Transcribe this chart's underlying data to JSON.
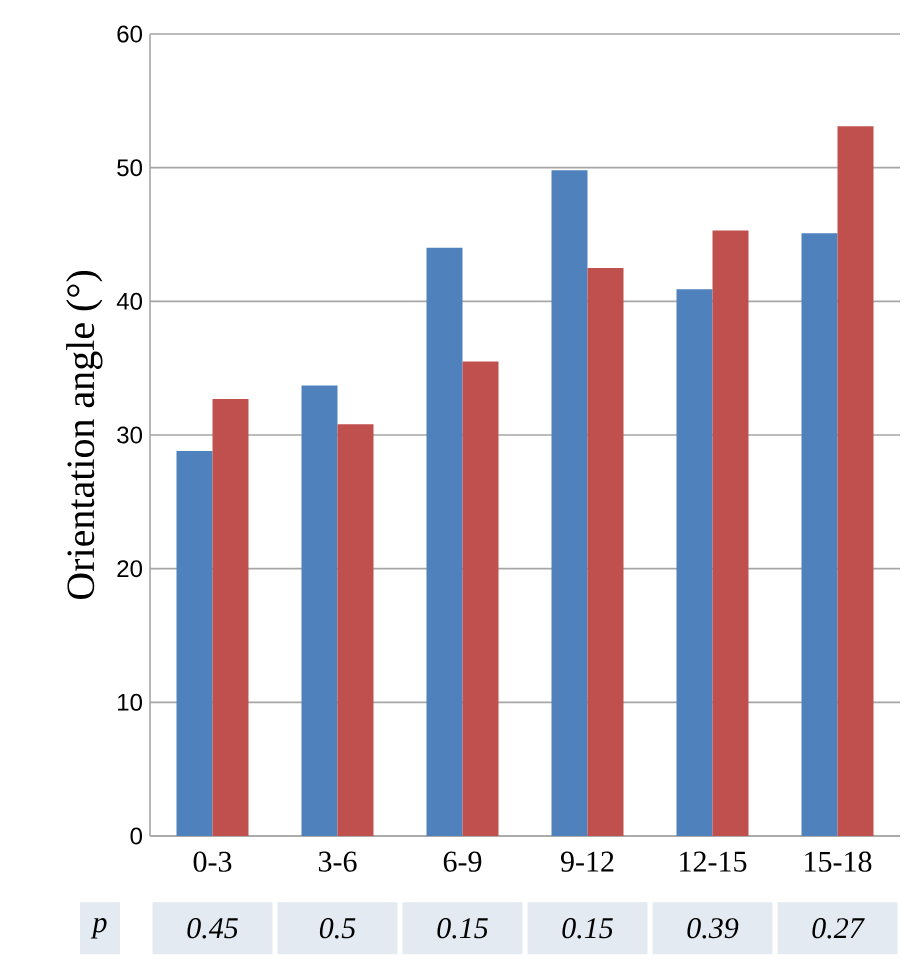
{
  "chart_data": {
    "type": "bar",
    "ylabel": "Orientation angle (°)",
    "categories": [
      "0-3",
      "3-6",
      "6-9",
      "9-12",
      "12-15",
      "15-18"
    ],
    "series": [
      {
        "color": "#4f81bd",
        "values": [
          28.8,
          33.7,
          44.0,
          49.8,
          40.9,
          45.1
        ]
      },
      {
        "color": "#c0504d",
        "values": [
          32.7,
          30.8,
          35.5,
          42.5,
          45.3,
          53.1
        ]
      }
    ],
    "ylim": [
      0,
      60
    ],
    "yticks": [
      0,
      10,
      20,
      30,
      40,
      50,
      60
    ],
    "grid": "y",
    "annotations": [
      "p",
      "0.45",
      "0.5",
      "0.15",
      "0.15",
      "0.39",
      "0.27"
    ]
  }
}
